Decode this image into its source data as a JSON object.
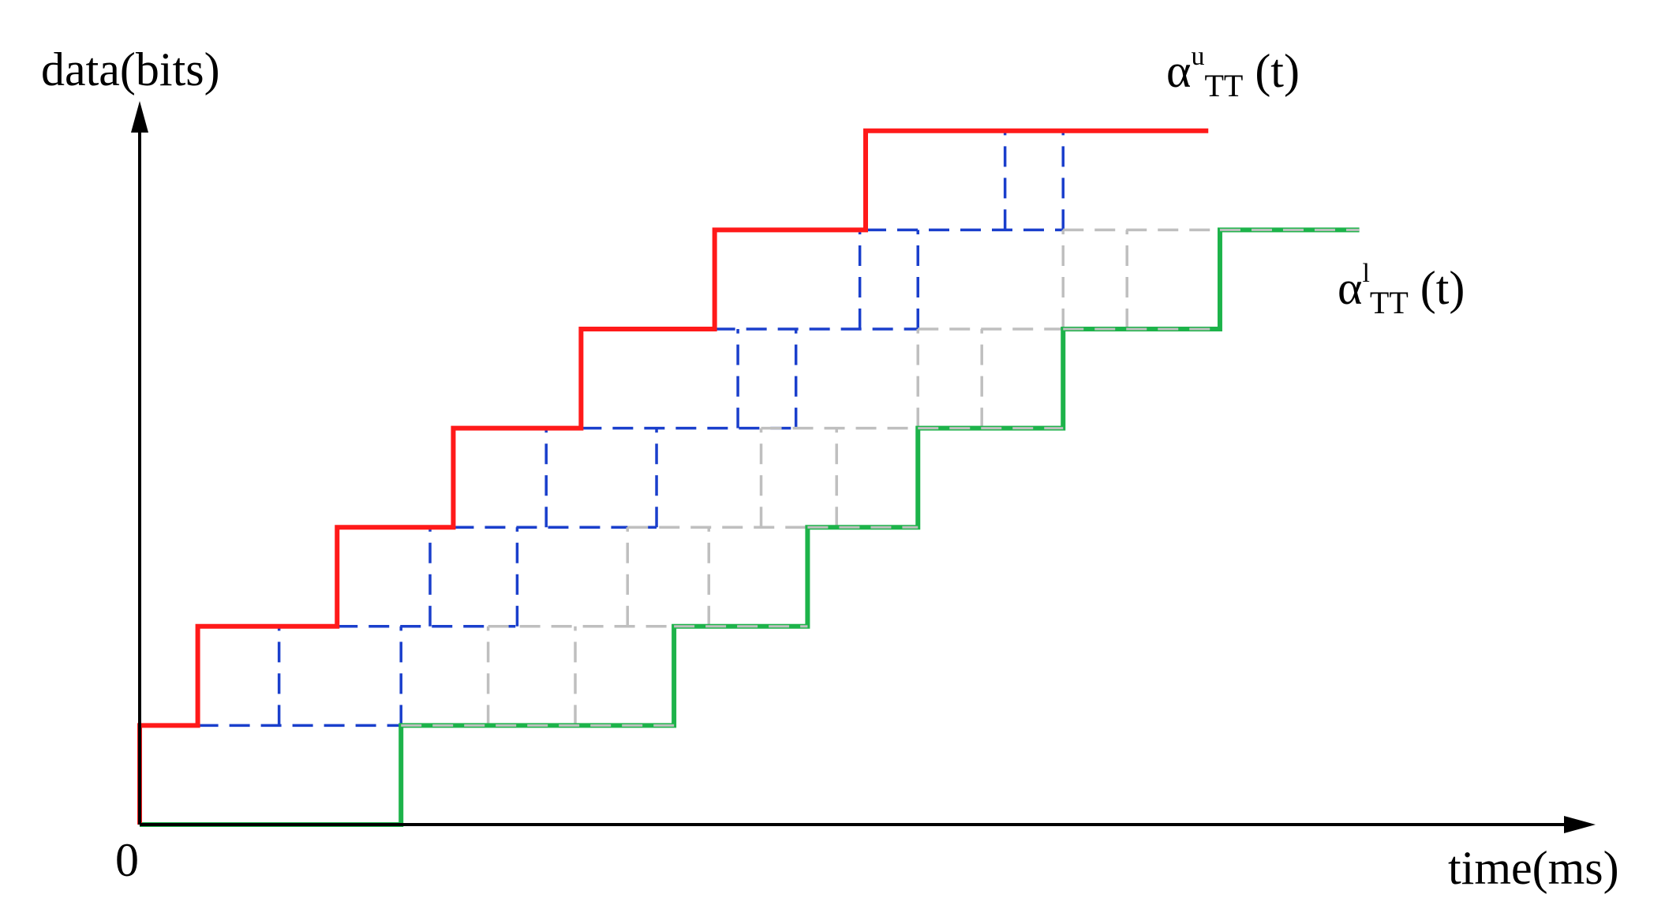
{
  "chart_data": {
    "type": "line",
    "xlabel": "time(ms)",
    "ylabel": "data(bits)",
    "origin_label": "0",
    "xlim": [
      0,
      22
    ],
    "ylim": [
      0,
      7
    ],
    "grid": false,
    "legend": "labels placed next to curve ends (upper right)",
    "labels": {
      "upper": {
        "base": "α",
        "sup": "u",
        "sub": "TT",
        "arg": " (t)"
      },
      "lower": {
        "base": "α",
        "sup": "l",
        "sub": "TT",
        "arg": " (t)"
      }
    },
    "colors": {
      "upper": "#ff1a1a",
      "lower": "#1db34a",
      "blue_dashed": "#1a3fcc",
      "gray_dashed": "#bfbfbf",
      "axis": "#000000"
    },
    "series": [
      {
        "role": "upper",
        "style": "solid",
        "x": [
          0,
          0,
          1,
          1,
          3.4,
          3.4,
          5.4,
          5.4,
          7.6,
          7.6,
          9.9,
          9.9,
          12.5,
          12.5,
          18.4
        ],
        "y": [
          0,
          1,
          1,
          2,
          2,
          3,
          3,
          4,
          4,
          5,
          5,
          6,
          6,
          7,
          7
        ]
      },
      {
        "role": "lower",
        "style": "solid",
        "x": [
          0,
          4.5,
          4.5,
          9.2,
          9.2,
          11.5,
          11.5,
          13.4,
          13.4,
          15.9,
          15.9,
          18.6,
          18.6,
          21
        ],
        "y": [
          0,
          0,
          1,
          1,
          2,
          2,
          3,
          3,
          4,
          4,
          5,
          5,
          6,
          6
        ]
      },
      {
        "role": "blue_dashed",
        "style": "dashed",
        "segments": [
          [
            [
              1,
              1
            ],
            [
              4.5,
              1
            ]
          ],
          [
            [
              2.4,
              1
            ],
            [
              2.4,
              2
            ]
          ],
          [
            [
              4.5,
              1
            ],
            [
              4.5,
              2
            ]
          ],
          [
            [
              3.4,
              2
            ],
            [
              6.5,
              2
            ]
          ],
          [
            [
              5.0,
              2
            ],
            [
              5.0,
              3
            ]
          ],
          [
            [
              6.5,
              2
            ],
            [
              6.5,
              3
            ]
          ],
          [
            [
              5.4,
              3
            ],
            [
              8.9,
              3
            ]
          ],
          [
            [
              7.0,
              3
            ],
            [
              7.0,
              4
            ]
          ],
          [
            [
              8.9,
              3
            ],
            [
              8.9,
              4
            ]
          ],
          [
            [
              7.6,
              4
            ],
            [
              11.3,
              4
            ]
          ],
          [
            [
              10.3,
              4
            ],
            [
              10.3,
              5
            ]
          ],
          [
            [
              11.3,
              4
            ],
            [
              11.3,
              5
            ]
          ],
          [
            [
              9.9,
              5
            ],
            [
              13.4,
              5
            ]
          ],
          [
            [
              12.4,
              5
            ],
            [
              12.4,
              6
            ]
          ],
          [
            [
              13.4,
              5
            ],
            [
              13.4,
              6
            ]
          ],
          [
            [
              12.5,
              6
            ],
            [
              15.9,
              6
            ]
          ],
          [
            [
              14.9,
              6
            ],
            [
              14.9,
              7
            ]
          ],
          [
            [
              15.9,
              6
            ],
            [
              15.9,
              7
            ]
          ]
        ]
      },
      {
        "role": "gray_dashed",
        "style": "dashed",
        "segments": [
          [
            [
              4.5,
              1
            ],
            [
              9.2,
              1
            ]
          ],
          [
            [
              6.0,
              1
            ],
            [
              6.0,
              2
            ]
          ],
          [
            [
              7.5,
              1
            ],
            [
              7.5,
              2
            ]
          ],
          [
            [
              6.0,
              2
            ],
            [
              11.5,
              2
            ]
          ],
          [
            [
              8.4,
              2
            ],
            [
              8.4,
              3
            ]
          ],
          [
            [
              9.8,
              2
            ],
            [
              9.8,
              3
            ]
          ],
          [
            [
              8.4,
              3
            ],
            [
              13.4,
              3
            ]
          ],
          [
            [
              10.7,
              3
            ],
            [
              10.7,
              4
            ]
          ],
          [
            [
              12.0,
              3
            ],
            [
              12.0,
              4
            ]
          ],
          [
            [
              10.7,
              4
            ],
            [
              15.9,
              4
            ]
          ],
          [
            [
              13.4,
              4
            ],
            [
              13.4,
              5
            ]
          ],
          [
            [
              14.5,
              4
            ],
            [
              14.5,
              5
            ]
          ],
          [
            [
              13.4,
              5
            ],
            [
              18.6,
              5
            ]
          ],
          [
            [
              15.9,
              5
            ],
            [
              15.9,
              6
            ]
          ],
          [
            [
              17.0,
              5
            ],
            [
              17.0,
              6
            ]
          ],
          [
            [
              15.9,
              6
            ],
            [
              21,
              6
            ]
          ]
        ]
      }
    ]
  }
}
